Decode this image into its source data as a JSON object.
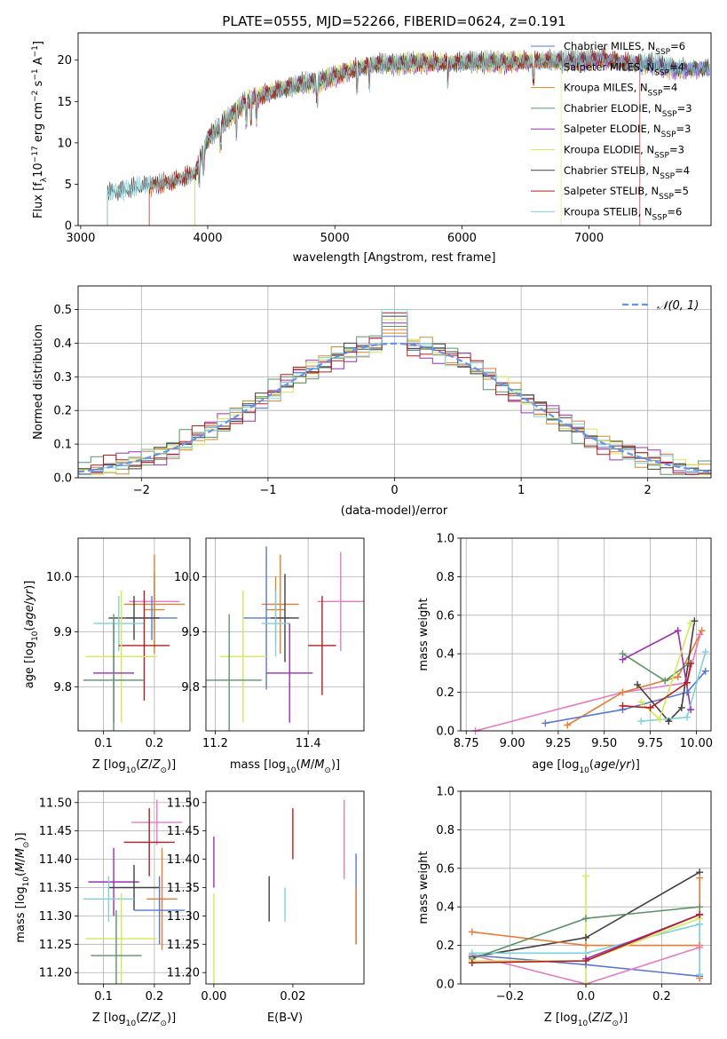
{
  "figure": {
    "title": "PLATE=0555, MJD=52266, FIBERID=0624, z=0.191"
  },
  "colors": {
    "grid": "#b0b0b0",
    "norm_curve": "#6495ed"
  },
  "chart_data": [
    {
      "id": "spectrum",
      "type": "line",
      "xlabel": "wavelength [Angstrom, rest frame]",
      "ylabel": "Flux [f_λ 10^-17 erg cm^-2 s^-1 A^-1]",
      "xlim": [
        2980,
        7960
      ],
      "ylim": [
        0,
        23.3
      ],
      "xticks": [
        3000,
        4000,
        5000,
        6000,
        7000
      ],
      "yticks": [
        0,
        5,
        10,
        15,
        20
      ],
      "grid": false,
      "legend_position": "right",
      "continuum": {
        "x": [
          3210,
          3350,
          3500,
          3700,
          3900,
          4000,
          4150,
          4300,
          4500,
          4700,
          4900,
          5100,
          5300,
          5500,
          5700,
          5900,
          6100,
          6300,
          6500,
          6700,
          6900,
          7100,
          7300,
          7500,
          7700,
          7950
        ],
        "y": [
          4.0,
          4.3,
          4.8,
          5.2,
          6.3,
          10.5,
          12.8,
          15.0,
          16.1,
          17.0,
          17.5,
          18.6,
          19.5,
          19.5,
          19.7,
          19.6,
          19.8,
          19.7,
          19.8,
          19.9,
          19.9,
          20.2,
          19.6,
          19.5,
          18.9,
          19.0
        ]
      },
      "series": [
        {
          "name": "Chabrier MILES",
          "nssp": "6",
          "color": "#5778d4",
          "start": 3540
        },
        {
          "name": "Salpeter MILES",
          "nssp": "4",
          "color": "#e67c35",
          "start": 3540,
          "end": 7400
        },
        {
          "name": "Kroupa MILES",
          "nssp": "4",
          "color": "#d08b2b",
          "start": 3540
        },
        {
          "name": "Chabrier ELODIE",
          "nssp": "3",
          "color": "#5c9468",
          "start": 3900
        },
        {
          "name": "Salpeter ELODIE",
          "nssp": "3",
          "color": "#9b2fb4",
          "start": 3900
        },
        {
          "name": "Kroupa ELODIE",
          "nssp": "3",
          "color": "#d6e857",
          "start": 3900,
          "end": 6780
        },
        {
          "name": "Chabrier STELIB",
          "nssp": "4",
          "color": "#404040",
          "start": 3210
        },
        {
          "name": "Salpeter STELIB",
          "nssp": "5",
          "color": "#b51e1e",
          "start": 3540,
          "end": 7400
        },
        {
          "name": "Kroupa STELIB",
          "nssp": "6",
          "color": "#7ed2dc",
          "start": 3210
        }
      ]
    },
    {
      "id": "residuals",
      "type": "line",
      "xlabel": "(data-model)/error",
      "ylabel": "Normed distribution",
      "xlim": [
        -2.5,
        2.5
      ],
      "ylim": [
        0,
        0.57
      ],
      "xticks": [
        -2,
        -1,
        0,
        1,
        2
      ],
      "yticks": [
        0.0,
        0.1,
        0.2,
        0.3,
        0.4,
        0.5
      ],
      "grid": true,
      "legend_position": "top-right",
      "legend": [
        "𝒩(0, 1)"
      ],
      "bin_width": 0.1,
      "hist_offsets": [
        0.0,
        0.012,
        -0.012,
        0.018,
        -0.018,
        0.008,
        -0.008,
        0.015,
        -0.01
      ]
    },
    {
      "id": "age_vs_Z",
      "type": "scatter",
      "xlabel": "Z [log10(Z/Z⊙)]",
      "ylabel": "age [log10(age/yr)]",
      "xlim": [
        0.05,
        0.27
      ],
      "ylim": [
        9.72,
        10.07
      ],
      "xticks": [
        0.1,
        0.2
      ],
      "yticks": [
        9.8,
        9.9,
        10.0
      ],
      "grid": true,
      "points": [
        {
          "x": 0.2,
          "y": 9.95,
          "xerr": 0.06,
          "yerr": 0.09,
          "color": "#e67c35"
        },
        {
          "x": 0.2,
          "y": 9.955,
          "xerr": 0.05,
          "yerr": 0.05,
          "color": "#e57cc0"
        },
        {
          "x": 0.2,
          "y": 9.94,
          "xerr": 0.02,
          "yerr": 0.07,
          "color": "#d08b2b"
        },
        {
          "x": 0.195,
          "y": 9.925,
          "xerr": 0.05,
          "yerr": 0.04,
          "color": "#5778d4"
        },
        {
          "x": 0.16,
          "y": 9.925,
          "xerr": 0.05,
          "yerr": 0.04,
          "color": "#404040"
        },
        {
          "x": 0.13,
          "y": 9.915,
          "xerr": 0.05,
          "yerr": 0.05,
          "color": "#7ed2dc"
        },
        {
          "x": 0.18,
          "y": 9.875,
          "xerr": 0.05,
          "yerr": 0.1,
          "color": "#b51e1e"
        },
        {
          "x": 0.135,
          "y": 9.855,
          "xerr": 0.07,
          "yerr": 0.12,
          "color": "#d6e857"
        },
        {
          "x": 0.12,
          "y": 9.825,
          "xerr": 0.04,
          "yerr": 0.09,
          "color": "#9b2fb4"
        },
        {
          "x": 0.12,
          "y": 9.812,
          "xerr": 0.06,
          "yerr": 0.12,
          "color": "#5c9468"
        }
      ]
    },
    {
      "id": "age_vs_mass",
      "type": "scatter",
      "xlabel": "mass [log10(M/M⊙)]",
      "ylabel": "",
      "xlim": [
        11.18,
        11.52
      ],
      "ylim": [
        9.72,
        10.07
      ],
      "xticks": [
        11.2,
        11.4
      ],
      "yticks": [
        9.8,
        9.9,
        10.0
      ],
      "grid": true,
      "points": [
        {
          "x": 11.34,
          "y": 9.95,
          "xerr": 0.04,
          "yerr": 0.09,
          "color": "#e67c35"
        },
        {
          "x": 11.47,
          "y": 9.955,
          "xerr": 0.05,
          "yerr": 0.09,
          "color": "#e57cc0"
        },
        {
          "x": 11.33,
          "y": 9.94,
          "xerr": 0.02,
          "yerr": 0.06,
          "color": "#d08b2b"
        },
        {
          "x": 11.31,
          "y": 9.925,
          "xerr": 0.05,
          "yerr": 0.13,
          "color": "#5778d4"
        },
        {
          "x": 11.35,
          "y": 9.925,
          "xerr": 0.03,
          "yerr": 0.08,
          "color": "#404040"
        },
        {
          "x": 11.33,
          "y": 9.915,
          "xerr": 0.03,
          "yerr": 0.06,
          "color": "#7ed2dc"
        },
        {
          "x": 11.43,
          "y": 9.875,
          "xerr": 0.03,
          "yerr": 0.09,
          "color": "#b51e1e"
        },
        {
          "x": 11.26,
          "y": 9.855,
          "xerr": 0.05,
          "yerr": 0.12,
          "color": "#d6e857"
        },
        {
          "x": 11.36,
          "y": 9.825,
          "xerr": 0.05,
          "yerr": 0.09,
          "color": "#9b2fb4"
        },
        {
          "x": 11.23,
          "y": 9.812,
          "xerr": 0.07,
          "yerr": 0.12,
          "color": "#5c9468"
        }
      ]
    },
    {
      "id": "weight_vs_age",
      "type": "line",
      "xlabel": "age [log10(age/yr)]",
      "ylabel": "mass weight",
      "xlim": [
        8.72,
        10.08
      ],
      "ylim": [
        0,
        1.0
      ],
      "xticks": [
        8.75,
        9.0,
        9.25,
        9.5,
        9.75,
        10.0
      ],
      "yticks": [
        0.0,
        0.2,
        0.4,
        0.6,
        0.8,
        1.0
      ],
      "grid": true,
      "series": [
        {
          "color": "#e57cc0",
          "x": [
            8.8,
            9.6,
            9.95,
            10.02
          ],
          "y": [
            0.0,
            0.2,
            0.25,
            0.5
          ]
        },
        {
          "color": "#e67c35",
          "x": [
            9.3,
            9.6,
            9.9,
            10.03
          ],
          "y": [
            0.03,
            0.2,
            0.28,
            0.52
          ]
        },
        {
          "color": "#5778d4",
          "x": [
            9.18,
            9.6,
            9.95,
            10.05
          ],
          "y": [
            0.04,
            0.11,
            0.2,
            0.31
          ]
        },
        {
          "color": "#404040",
          "x": [
            9.68,
            9.85,
            9.92,
            9.99
          ],
          "y": [
            0.24,
            0.05,
            0.12,
            0.57
          ]
        },
        {
          "color": "#5c9468",
          "x": [
            9.6,
            9.83,
            9.96
          ],
          "y": [
            0.4,
            0.26,
            0.35
          ]
        },
        {
          "color": "#9b2fb4",
          "x": [
            9.6,
            9.9,
            9.97
          ],
          "y": [
            0.37,
            0.52,
            0.11
          ]
        },
        {
          "color": "#d6e857",
          "x": [
            9.7,
            9.8,
            9.97
          ],
          "y": [
            0.15,
            0.06,
            0.56
          ]
        },
        {
          "color": "#b51e1e",
          "x": [
            9.6,
            9.75,
            9.95,
            9.97
          ],
          "y": [
            0.13,
            0.12,
            0.25,
            0.35
          ]
        },
        {
          "color": "#7ed2dc",
          "x": [
            9.7,
            9.95,
            10.05
          ],
          "y": [
            0.05,
            0.07,
            0.41
          ]
        }
      ]
    },
    {
      "id": "mass_vs_Z",
      "type": "scatter",
      "xlabel": "Z [log10(Z/Z⊙)]",
      "ylabel": "mass [log10(M/M⊙)]",
      "xlim": [
        0.05,
        0.27
      ],
      "ylim": [
        11.18,
        11.52
      ],
      "xticks": [
        0.1,
        0.2
      ],
      "yticks": [
        11.2,
        11.25,
        11.3,
        11.35,
        11.4,
        11.45,
        11.5
      ],
      "grid": true,
      "points": [
        {
          "x": 0.205,
          "y": 11.465,
          "xerr": 0.05,
          "yerr": 0.04,
          "color": "#e57cc0"
        },
        {
          "x": 0.19,
          "y": 11.43,
          "xerr": 0.05,
          "yerr": 0.06,
          "color": "#b51e1e"
        },
        {
          "x": 0.12,
          "y": 11.36,
          "xerr": 0.05,
          "yerr": 0.06,
          "color": "#9b2fb4"
        },
        {
          "x": 0.16,
          "y": 11.35,
          "xerr": 0.05,
          "yerr": 0.04,
          "color": "#404040"
        },
        {
          "x": 0.11,
          "y": 11.33,
          "xerr": 0.05,
          "yerr": 0.04,
          "color": "#7ed2dc"
        },
        {
          "x": 0.215,
          "y": 11.33,
          "xerr": 0.03,
          "yerr": 0.09,
          "color": "#e67c35"
        },
        {
          "x": 0.21,
          "y": 11.31,
          "xerr": 0.05,
          "yerr": 0.06,
          "color": "#5778d4"
        },
        {
          "x": 0.135,
          "y": 11.26,
          "xerr": 0.07,
          "yerr": 0.08,
          "color": "#d6e857"
        },
        {
          "x": 0.125,
          "y": 11.23,
          "xerr": 0.05,
          "yerr": 0.08,
          "color": "#5c9468"
        }
      ]
    },
    {
      "id": "mass_vs_ebv",
      "type": "scatter",
      "xlabel": "E(B-V)",
      "ylabel": "",
      "xlim": [
        -0.002,
        0.038
      ],
      "ylim": [
        11.18,
        11.52
      ],
      "xticks": [
        0.0,
        0.02
      ],
      "yticks": [
        11.2,
        11.25,
        11.3,
        11.35,
        11.4,
        11.45,
        11.5
      ],
      "grid": false,
      "points": [
        {
          "x": 0.0,
          "y": 11.395,
          "yerr": 0.045,
          "color": "#9b2fb4"
        },
        {
          "x": 0.0,
          "y": 11.26,
          "yerr": 0.08,
          "color": "#d6e857"
        },
        {
          "x": 0.014,
          "y": 11.33,
          "yerr": 0.04,
          "color": "#404040"
        },
        {
          "x": 0.018,
          "y": 11.32,
          "yerr": 0.03,
          "color": "#7ed2dc"
        },
        {
          "x": 0.02,
          "y": 11.445,
          "yerr": 0.045,
          "color": "#b51e1e"
        },
        {
          "x": 0.033,
          "y": 11.435,
          "yerr": 0.07,
          "color": "#e57cc0"
        },
        {
          "x": 0.036,
          "y": 11.33,
          "yerr": 0.08,
          "color": "#5778d4"
        },
        {
          "x": 0.036,
          "y": 11.3,
          "yerr": 0.05,
          "color": "#e67c35"
        }
      ]
    },
    {
      "id": "weight_vs_Z",
      "type": "line",
      "xlabel": "Z [log10(Z/Z⊙)]",
      "ylabel": "mass weight",
      "xlim": [
        -0.33,
        0.33
      ],
      "ylim": [
        0,
        1.0
      ],
      "xticks": [
        -0.2,
        0.0,
        0.2
      ],
      "yticks": [
        0.0,
        0.2,
        0.4,
        0.6,
        0.8,
        1.0
      ],
      "grid": true,
      "series": [
        {
          "color": "#404040",
          "x": [
            -0.3,
            0.0,
            0.3
          ],
          "y": [
            0.14,
            0.24,
            0.58
          ]
        },
        {
          "color": "#e67c35",
          "x": [
            -0.3,
            0.0,
            0.3
          ],
          "y": [
            0.27,
            0.2,
            0.2
          ]
        },
        {
          "color": "#5778d4",
          "x": [
            -0.3,
            0.0,
            0.3
          ],
          "y": [
            0.15,
            0.1,
            0.04
          ]
        },
        {
          "color": "#e57cc0",
          "x": [
            -0.3,
            0.0,
            0.3
          ],
          "y": [
            0.15,
            0.0,
            0.19
          ]
        },
        {
          "color": "#7ed2dc",
          "x": [
            -0.3,
            0.0,
            0.3
          ],
          "y": [
            0.16,
            0.16,
            0.31
          ]
        },
        {
          "color": "#5c9468",
          "x": [
            -0.3,
            0.0,
            0.3
          ],
          "y": [
            0.13,
            0.34,
            0.4
          ]
        },
        {
          "color": "#d6e857",
          "x": [
            -0.3,
            0.0,
            0.3
          ],
          "y": [
            0.12,
            0.12,
            0.34
          ]
        },
        {
          "color": "#9b2fb4",
          "x": [
            0.0,
            0.3
          ],
          "y": [
            0.13,
            0.36
          ]
        },
        {
          "color": "#b51e1e",
          "x": [
            -0.3,
            0.0,
            0.3
          ],
          "y": [
            0.11,
            0.12,
            0.36
          ]
        },
        {
          "color": "#d6e857",
          "x": [
            0.0,
            0.0
          ],
          "y": [
            0.0,
            0.56
          ]
        },
        {
          "color": "#e67c35",
          "x": [
            0.3,
            0.3
          ],
          "y": [
            0.03,
            0.55
          ]
        },
        {
          "color": "#7ed2dc",
          "x": [
            0.3,
            0.3
          ],
          "y": [
            0.05,
            0.31
          ]
        }
      ]
    }
  ]
}
